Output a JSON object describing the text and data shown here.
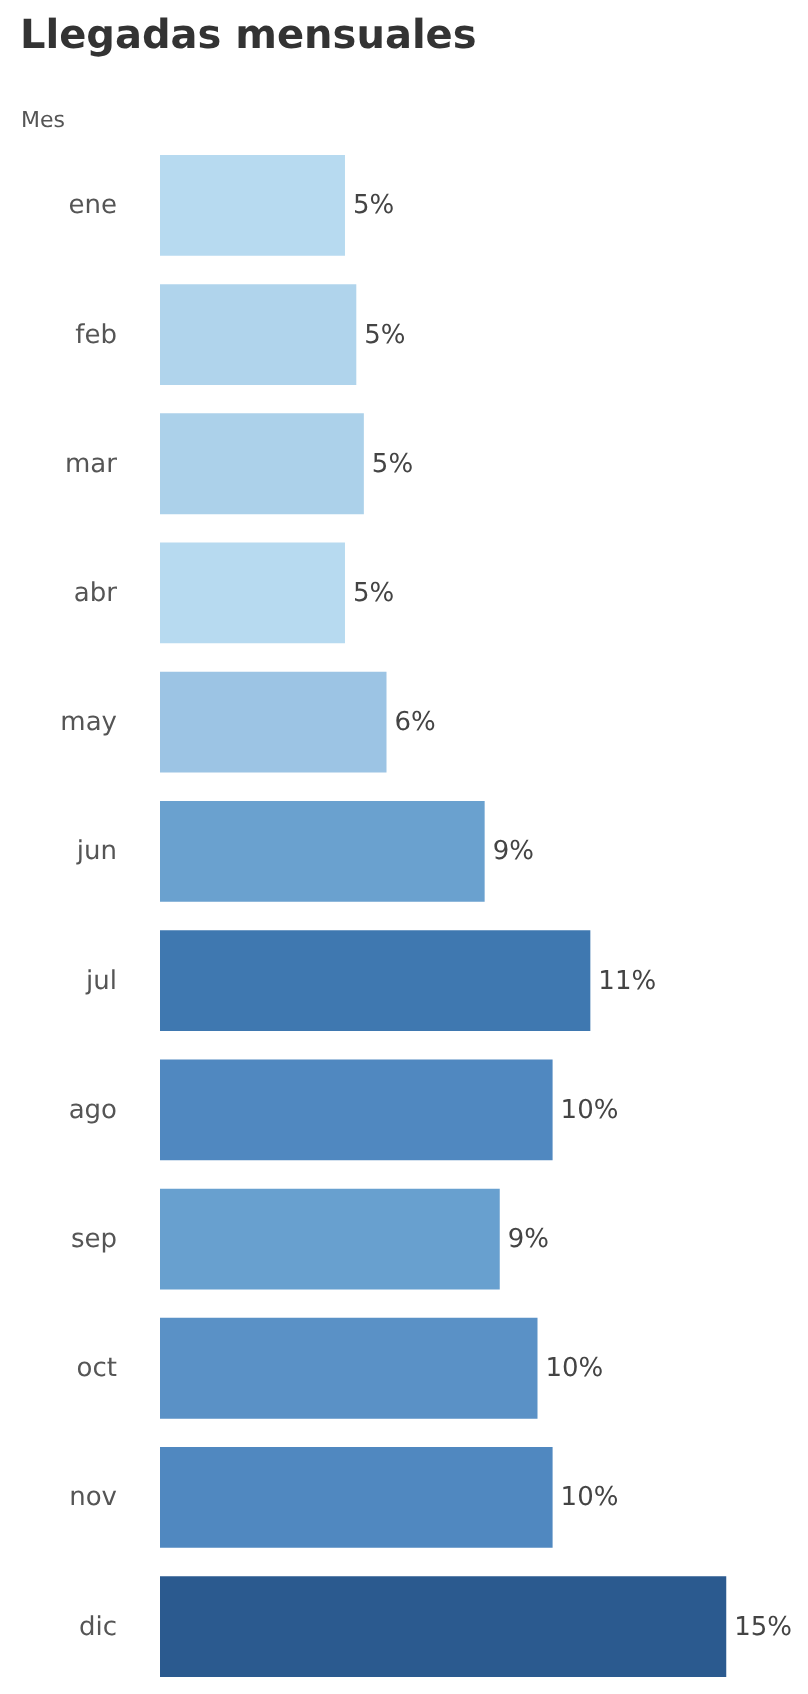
{
  "chart_data": {
    "type": "bar",
    "orientation": "horizontal",
    "title": "Llegadas mensuales",
    "ylabel": "Mes",
    "categories": [
      "ene",
      "feb",
      "mar",
      "abr",
      "may",
      "jun",
      "jul",
      "ago",
      "sep",
      "oct",
      "nov",
      "dic"
    ],
    "values": [
      4.9,
      5.2,
      5.4,
      4.9,
      6.0,
      8.6,
      11.4,
      10.4,
      9.0,
      10.0,
      10.4,
      15.0
    ],
    "value_labels": [
      "5%",
      "5%",
      "5%",
      "5%",
      "6%",
      "9%",
      "11%",
      "10%",
      "9%",
      "10%",
      "10%",
      "15%"
    ],
    "colors": [
      "#b7daf0",
      "#b0d4ec",
      "#acd1ea",
      "#b7daf0",
      "#9cc4e4",
      "#6aa1cf",
      "#3f78b0",
      "#5088c0",
      "#68a0cf",
      "#5a91c6",
      "#5088c0",
      "#2b5a8f"
    ],
    "grid": false,
    "legend": false
  }
}
